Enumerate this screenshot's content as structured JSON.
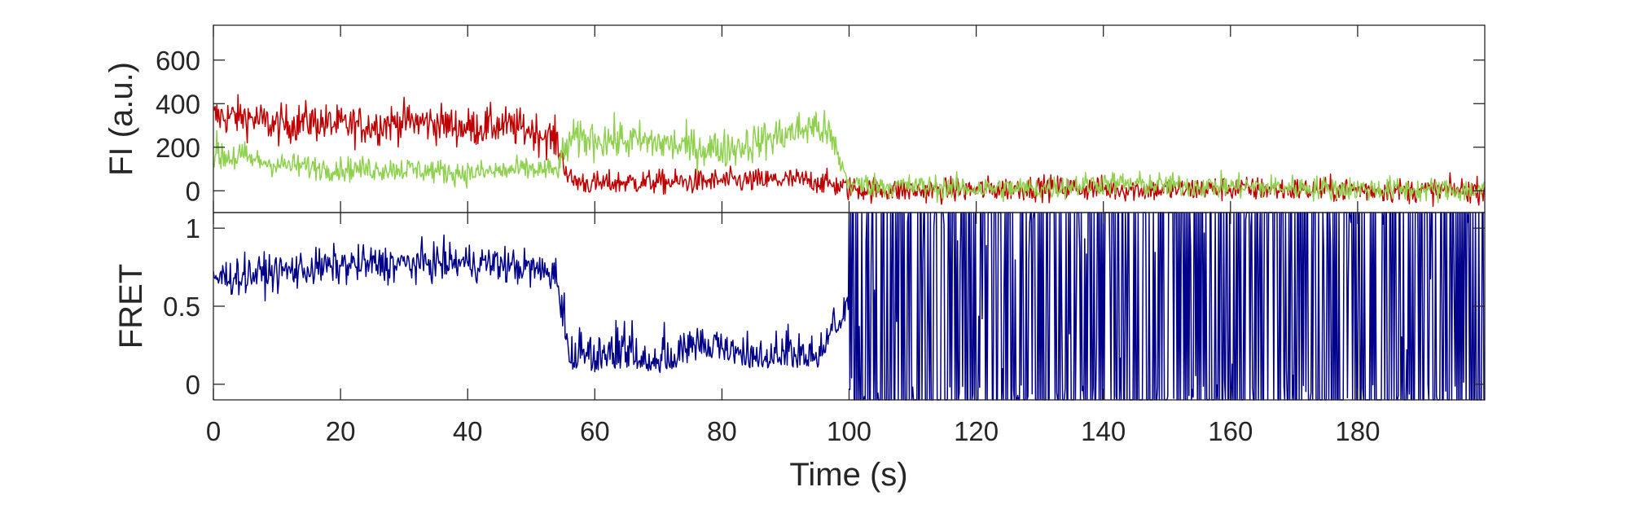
{
  "chart_data": [
    {
      "type": "line",
      "panel": "top",
      "ylabel": "FI (a.u.)",
      "ylim": [
        -100,
        760
      ],
      "yticks": [
        0,
        200,
        400,
        600
      ],
      "ytick_labels": [
        "0",
        "200",
        "400",
        "600"
      ],
      "xlim": [
        0,
        200
      ],
      "grid": false,
      "series": [
        {
          "color": "#c00000",
          "x": [
            0,
            5,
            10,
            15,
            20,
            25,
            30,
            35,
            40,
            45,
            50,
            54,
            56,
            60,
            65,
            70,
            75,
            80,
            85,
            90,
            95,
            100,
            110,
            120,
            130,
            140,
            150,
            160,
            170,
            180,
            190,
            200
          ],
          "values": [
            340,
            340,
            300,
            320,
            300,
            300,
            320,
            310,
            290,
            300,
            280,
            230,
            50,
            30,
            40,
            40,
            40,
            45,
            45,
            50,
            45,
            10,
            0,
            5,
            15,
            10,
            5,
            10,
            5,
            5,
            0,
            5
          ]
        },
        {
          "color": "#8fd14f",
          "x": [
            0,
            5,
            10,
            15,
            20,
            25,
            30,
            35,
            40,
            45,
            50,
            54,
            56,
            60,
            65,
            70,
            75,
            80,
            85,
            90,
            95,
            97,
            100,
            110,
            120,
            130,
            140,
            150,
            160,
            170,
            180,
            190,
            200
          ],
          "values": [
            170,
            150,
            120,
            110,
            100,
            100,
            100,
            90,
            80,
            90,
            100,
            90,
            230,
            240,
            230,
            220,
            200,
            190,
            220,
            260,
            300,
            250,
            30,
            20,
            10,
            10,
            35,
            25,
            20,
            15,
            10,
            5,
            0
          ]
        }
      ]
    },
    {
      "type": "line",
      "panel": "bottom",
      "ylabel": "FRET",
      "ylim": [
        -0.1,
        1.1
      ],
      "yticks": [
        0,
        0.5,
        1
      ],
      "ytick_labels": [
        "0",
        "0.5",
        "1"
      ],
      "xlim": [
        0,
        200
      ],
      "xticks": [
        0,
        20,
        40,
        60,
        80,
        100,
        120,
        140,
        160,
        180
      ],
      "xtick_labels": [
        "0",
        "20",
        "40",
        "60",
        "80",
        "100",
        "120",
        "140",
        "160",
        "180"
      ],
      "xlabel": "Time (s)",
      "grid": false,
      "series": [
        {
          "color": "#00008b",
          "x": [
            0,
            5,
            10,
            15,
            20,
            25,
            30,
            35,
            40,
            45,
            50,
            54,
            56,
            60,
            65,
            70,
            75,
            80,
            85,
            90,
            95,
            100,
            110,
            120,
            130,
            140,
            150,
            160,
            170,
            180,
            190,
            200
          ],
          "values": [
            0.68,
            0.7,
            0.72,
            0.74,
            0.76,
            0.77,
            0.77,
            0.78,
            0.78,
            0.77,
            0.74,
            0.7,
            0.15,
            0.12,
            0.15,
            0.12,
            0.18,
            0.2,
            0.15,
            0.16,
            0.15,
            0.5,
            0.5,
            0.5,
            0.5,
            0.5,
            0.5,
            0.5,
            0.5,
            0.5,
            0.5,
            0.5
          ]
        }
      ]
    }
  ]
}
